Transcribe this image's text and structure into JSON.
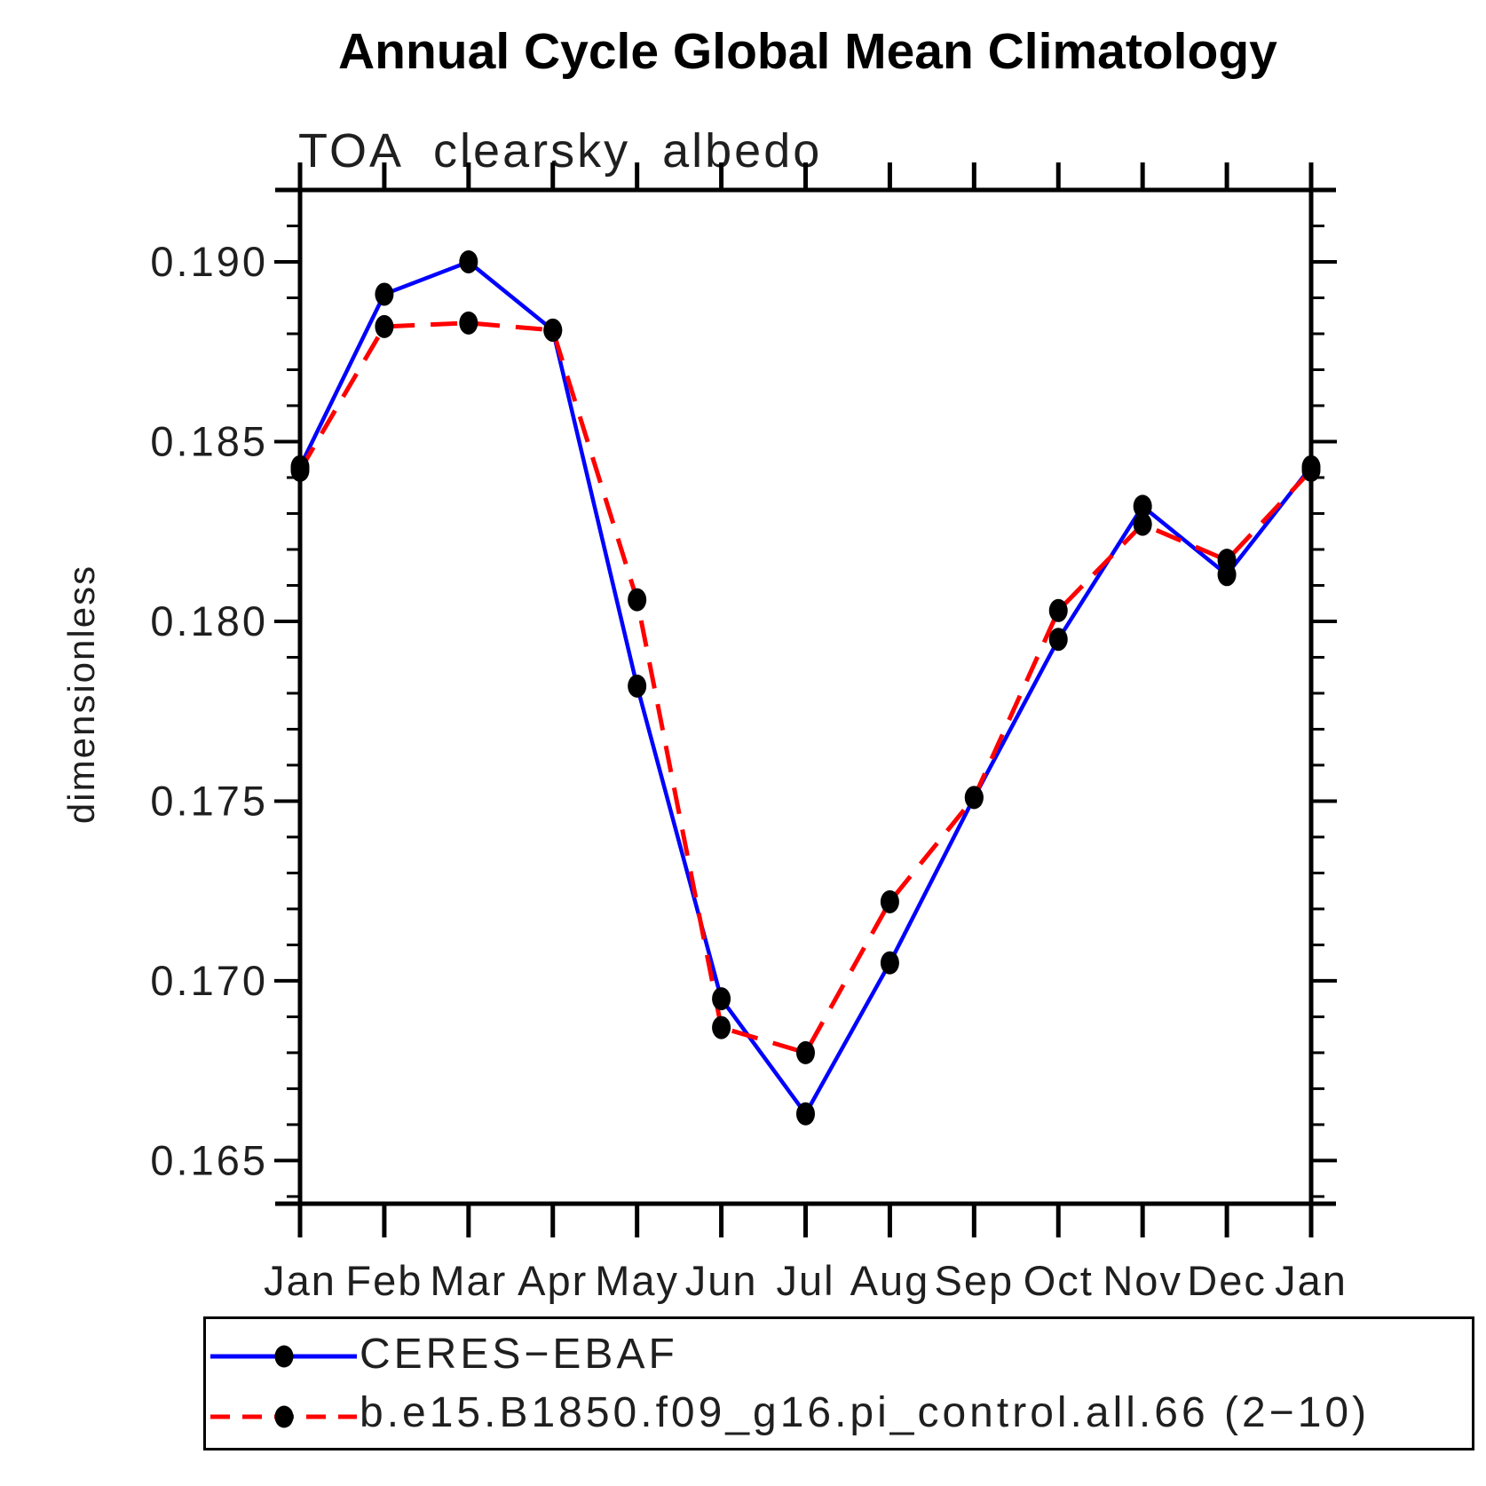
{
  "title": "Annual Cycle Global Mean Climatology",
  "subtitle": "TOA clearsky albedo",
  "ylabel": "dimensionless",
  "legend": [
    {
      "label": "CERES−EBAF",
      "color": "#0000ff",
      "style": "solid"
    },
    {
      "label": "b.e15.B1850.f09_g16.pi_control.all.66 (2−10)",
      "color": "#ff0000",
      "style": "dashed"
    }
  ],
  "chart_data": {
    "type": "line",
    "categories": [
      "Jan",
      "Feb",
      "Mar",
      "Apr",
      "May",
      "Jun",
      "Jul",
      "Aug",
      "Sep",
      "Oct",
      "Nov",
      "Dec",
      "Jan"
    ],
    "series": [
      {
        "name": "CERES−EBAF",
        "color": "#0000ff",
        "dash": "solid",
        "values": [
          0.1843,
          0.1891,
          0.19,
          0.1881,
          0.1782,
          0.1695,
          0.1663,
          0.1705,
          0.1751,
          0.1795,
          0.1832,
          0.1813,
          0.1843
        ]
      },
      {
        "name": "b.e15.B1850.f09_g16.pi_control.all.66 (2−10)",
        "color": "#ff0000",
        "dash": "dashed",
        "values": [
          0.1842,
          0.1882,
          0.1883,
          0.1881,
          0.1806,
          0.1687,
          0.168,
          0.1722,
          0.1751,
          0.1803,
          0.1827,
          0.1817,
          0.1842
        ]
      }
    ],
    "title": "TOA clearsky albedo",
    "xlabel": "",
    "ylabel": "dimensionless",
    "ylim": [
      0.1638,
      0.192
    ],
    "yticks_major": [
      0.165,
      0.17,
      0.175,
      0.18,
      0.185,
      0.19
    ],
    "ytick_labels": [
      "0.165",
      "0.170",
      "0.175",
      "0.180",
      "0.185",
      "0.190"
    ],
    "yticks_minor": {
      "start": 0.164,
      "end": 0.191,
      "step": 0.001
    },
    "grid": false,
    "legend_position": "bottom",
    "marker": "filled-circle",
    "marker_color": "#000000"
  }
}
